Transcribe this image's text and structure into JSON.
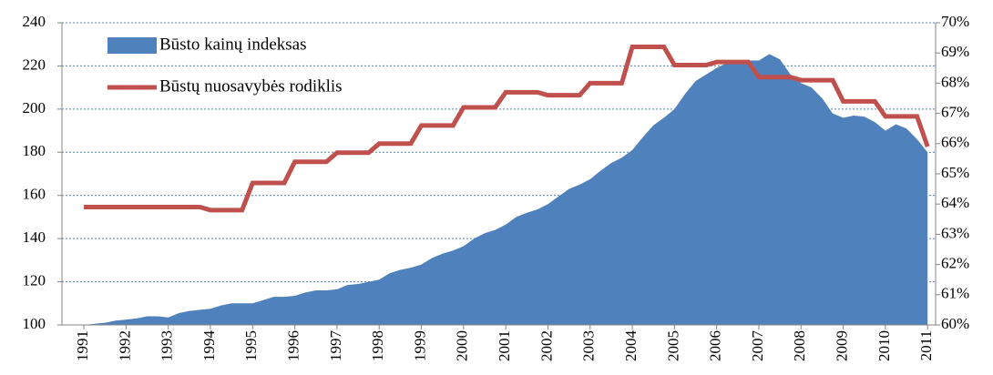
{
  "chart_data": {
    "type": "area_line",
    "xlim": [
      1990.48,
      2011.19
    ],
    "xticks": [
      1991,
      1992,
      1993,
      1994,
      1995,
      1996,
      1997,
      1998,
      1999,
      2000,
      2001,
      2002,
      2003,
      2004,
      2005,
      2006,
      2007,
      2008,
      2009,
      2010,
      2011
    ],
    "ylim": [
      100,
      240
    ],
    "yticks": [
      100,
      120,
      140,
      160,
      180,
      200,
      220,
      240
    ],
    "y2lim": [
      60,
      70
    ],
    "y2ticks": [
      {
        "value": 60,
        "label": "60%"
      },
      {
        "value": 61,
        "label": "61%"
      },
      {
        "value": 62,
        "label": "62%"
      },
      {
        "value": 63,
        "label": "63%"
      },
      {
        "value": 64,
        "label": "64%"
      },
      {
        "value": 65,
        "label": "65%"
      },
      {
        "value": 66,
        "label": "66%"
      },
      {
        "value": 67,
        "label": "67%"
      },
      {
        "value": 68,
        "label": "68%"
      },
      {
        "value": 69,
        "label": "69%"
      },
      {
        "value": 70,
        "label": "70%"
      }
    ],
    "grid": true,
    "legend": "top-left",
    "series": [
      {
        "name": "Būsto kainų indeksas",
        "kind": "area",
        "color": "#4f81bd",
        "x": [
          1991,
          1991.25,
          1991.5,
          1991.75,
          1992,
          1992.25,
          1992.5,
          1992.75,
          1993,
          1993.25,
          1993.5,
          1993.75,
          1994,
          1994.25,
          1994.5,
          1994.75,
          1995,
          1995.25,
          1995.5,
          1995.75,
          1996,
          1996.25,
          1996.5,
          1996.75,
          1997,
          1997.25,
          1997.5,
          1997.75,
          1998,
          1998.25,
          1998.5,
          1998.75,
          1999,
          1999.25,
          1999.5,
          1999.75,
          2000,
          2000.25,
          2000.5,
          2000.75,
          2001,
          2001.25,
          2001.5,
          2001.75,
          2002,
          2002.25,
          2002.5,
          2002.75,
          2003,
          2003.25,
          2003.5,
          2003.75,
          2004,
          2004.25,
          2004.5,
          2004.75,
          2005,
          2005.25,
          2005.5,
          2005.75,
          2006,
          2006.25,
          2006.5,
          2006.75,
          2007,
          2007.25,
          2007.5,
          2007.75,
          2008,
          2008.25,
          2008.5,
          2008.75,
          2009,
          2009.25,
          2009.5,
          2009.75,
          2010,
          2010.25,
          2010.5,
          2010.75,
          2011
        ],
        "values": [
          100,
          100.5,
          101,
          102,
          102.5,
          103,
          104,
          104,
          103.5,
          105.5,
          106.5,
          107,
          107.5,
          109,
          110,
          110,
          110,
          111.5,
          113,
          113,
          113.5,
          115,
          116,
          116,
          116.5,
          118.5,
          119,
          120,
          121,
          124,
          125.5,
          126.5,
          128,
          131,
          133,
          134.5,
          136.5,
          140,
          142.5,
          144,
          146.5,
          150,
          152,
          153.5,
          156,
          159.5,
          163,
          165,
          167.5,
          171.5,
          175,
          177.5,
          181,
          187,
          192.5,
          196,
          200,
          207,
          213,
          216,
          219,
          221.5,
          222,
          222.5,
          222.5,
          225.5,
          223,
          216,
          212,
          210,
          205,
          198,
          196,
          197,
          196.5,
          194,
          190,
          193,
          191,
          186,
          180
        ]
      },
      {
        "name": "Būstų nuosavybės rodiklis",
        "kind": "line",
        "axis": "y2",
        "color": "#c0504d",
        "x": [
          1991,
          1993.75,
          1994,
          1994.75,
          1995,
          1995.75,
          1996,
          1996.75,
          1997,
          1997.75,
          1998,
          1998.75,
          1999,
          1999.75,
          2000,
          2000.75,
          2001,
          2001.75,
          2002,
          2002.75,
          2003,
          2003.75,
          2004,
          2004.75,
          2005,
          2005.75,
          2006,
          2006.75,
          2007,
          2007.75,
          2008,
          2008.75,
          2009,
          2009.75,
          2010,
          2010.75,
          2011
        ],
        "values": [
          63.9,
          63.9,
          63.8,
          63.8,
          64.7,
          64.7,
          65.4,
          65.4,
          65.7,
          65.7,
          66.0,
          66.0,
          66.6,
          66.6,
          67.2,
          67.2,
          67.7,
          67.7,
          67.6,
          67.6,
          68.0,
          68.0,
          69.2,
          69.2,
          68.6,
          68.6,
          68.7,
          68.7,
          68.2,
          68.2,
          68.1,
          68.1,
          67.4,
          67.4,
          66.9,
          66.9,
          65.9
        ]
      }
    ]
  }
}
